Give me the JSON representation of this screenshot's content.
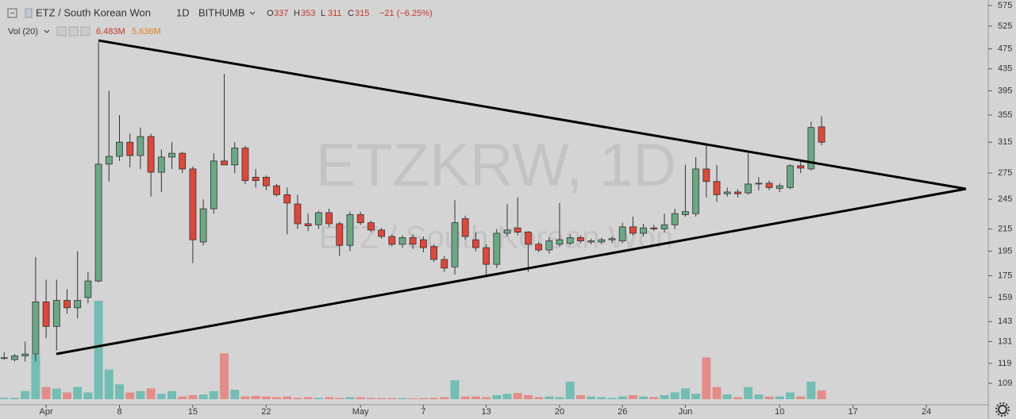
{
  "header": {
    "symbol": "ETZ / South Korean Won",
    "interval": "1D",
    "exchange": "BITHUMB",
    "ohlc_labels": [
      "O",
      "H",
      "L",
      "C"
    ],
    "change": "−21 (−6.25%)",
    "volume_indicator": "Vol (20)",
    "volume_values": [
      "6.483M",
      "5.636M"
    ],
    "watermark": "ETZKRW, 1D"
  },
  "chart_data": {
    "type": "candlestick",
    "x": [
      -4,
      -3,
      -2,
      -1,
      0,
      1,
      2,
      3,
      4,
      5,
      6,
      7,
      8,
      9,
      10,
      11,
      12,
      13,
      14,
      15,
      16,
      17,
      18,
      19,
      20,
      21,
      22,
      23,
      24,
      25,
      26,
      27,
      28,
      29,
      30,
      31,
      32,
      33,
      34,
      35,
      36,
      37,
      38,
      39,
      40,
      41,
      42,
      43,
      44,
      45,
      46,
      47,
      48,
      49,
      50,
      51,
      52,
      53,
      54,
      55,
      56,
      57,
      58,
      59,
      60,
      61,
      62,
      63,
      64,
      65,
      66,
      67,
      68,
      69,
      70,
      71,
      72,
      73,
      74
    ],
    "open": [
      122,
      121,
      123,
      124,
      156,
      140,
      157,
      152,
      159,
      171,
      286,
      296,
      315,
      297,
      323,
      276,
      295,
      300,
      280,
      203,
      235,
      290,
      285,
      307,
      270,
      270,
      260,
      250,
      240,
      220,
      219,
      231,
      220,
      200,
      229,
      221,
      214,
      208,
      201,
      207,
      205,
      199,
      188,
      182,
      225,
      205,
      198,
      184,
      211,
      216,
      212,
      201,
      196,
      201,
      202,
      207,
      203,
      203,
      205,
      204,
      217,
      211,
      216,
      215,
      219,
      229,
      230,
      280,
      265,
      251,
      253,
      252,
      262,
      263,
      257,
      258,
      284,
      280,
      337
    ],
    "high": [
      125,
      124,
      131,
      190,
      172,
      172,
      165,
      195,
      178,
      489,
      395,
      355,
      327,
      336,
      327,
      305,
      315,
      302,
      283,
      245,
      300,
      425,
      315,
      310,
      280,
      272,
      262,
      258,
      250,
      230,
      233,
      235,
      222,
      232,
      232,
      223,
      216,
      210,
      209,
      210,
      208,
      201,
      191,
      244,
      228,
      212,
      201,
      215,
      240,
      247,
      213,
      203,
      207,
      241,
      210,
      209,
      206,
      207,
      208,
      221,
      227,
      220,
      219,
      230,
      235,
      285,
      295,
      313,
      285,
      258,
      256,
      300,
      270,
      266,
      263,
      286,
      290,
      345,
      353
    ],
    "low": [
      121,
      120,
      120,
      120,
      133,
      126,
      148,
      145,
      155,
      170,
      265,
      290,
      282,
      280,
      248,
      253,
      280,
      275,
      185,
      200,
      230,
      285,
      275,
      262,
      258,
      255,
      248,
      210,
      215,
      213,
      215,
      217,
      191,
      195,
      219,
      212,
      206,
      199,
      198,
      197,
      194,
      186,
      178,
      176,
      205,
      195,
      174,
      181,
      208,
      209,
      178,
      194,
      193,
      199,
      200,
      202,
      201,
      201,
      202,
      202,
      209,
      208,
      213,
      212,
      215,
      227,
      227,
      247,
      242,
      248,
      247,
      250,
      255,
      255,
      253,
      256,
      275,
      278,
      311
    ],
    "close": [
      122,
      123,
      124,
      156,
      140,
      157,
      152,
      157,
      171,
      286,
      296,
      315,
      297,
      323,
      276,
      295,
      300,
      280,
      205,
      235,
      290,
      285,
      307,
      266,
      266,
      260,
      250,
      241,
      220,
      218,
      231,
      220,
      200,
      229,
      221,
      214,
      208,
      201,
      207,
      201,
      198,
      188,
      181,
      221,
      208,
      198,
      184,
      211,
      214,
      212,
      201,
      196,
      204,
      205,
      207,
      204,
      204,
      205,
      206,
      217,
      211,
      216,
      215,
      219,
      230,
      232,
      280,
      265,
      250,
      253,
      251,
      262,
      263,
      258,
      260,
      284,
      281,
      336,
      315
    ],
    "volume": [
      1,
      1,
      6,
      33,
      9,
      8,
      5,
      9,
      5,
      73,
      22,
      11,
      5,
      6,
      8,
      4,
      6,
      2,
      3,
      3.5,
      6,
      34,
      7,
      2,
      2.5,
      2,
      1.5,
      2,
      1,
      1.5,
      1,
      1.5,
      1,
      1.5,
      1.5,
      1,
      0.8,
      0.8,
      0.8,
      0.6,
      0.8,
      1,
      1.5,
      14,
      2,
      2,
      1.5,
      3,
      4,
      4.5,
      3,
      1.5,
      2,
      1.5,
      13,
      3,
      2,
      1.5,
      1,
      2,
      3,
      2,
      1.5,
      3,
      5,
      8,
      4,
      31,
      9,
      3.5,
      1.5,
      9,
      3.5,
      2,
      2,
      5,
      2,
      13,
      6.483
    ],
    "xlim": [
      -4.4,
      89.9
    ],
    "xticks": [
      {
        "value": 0,
        "label": "Apr"
      },
      {
        "value": 7,
        "label": "8"
      },
      {
        "value": 14,
        "label": "15"
      },
      {
        "value": 21,
        "label": "22"
      },
      {
        "value": 30,
        "label": "May"
      },
      {
        "value": 36,
        "label": "7"
      },
      {
        "value": 42,
        "label": "13"
      },
      {
        "value": 49,
        "label": "20"
      },
      {
        "value": 55,
        "label": "26"
      },
      {
        "value": 61,
        "label": "Jun"
      },
      {
        "value": 70,
        "label": "10"
      },
      {
        "value": 77,
        "label": "17"
      },
      {
        "value": 84,
        "label": "24"
      }
    ],
    "ylim": [
      99.2,
      589
    ],
    "yticks": [
      575,
      525,
      475,
      435,
      395,
      355,
      315,
      275,
      245,
      215,
      195,
      175,
      159,
      143,
      131,
      119,
      109
    ],
    "log_scale": true,
    "grid": false,
    "up_color": "#6aa884",
    "down_color": "#e0463a",
    "volume_up_color": "#72bdb4",
    "volume_down_color": "#e58c88"
  }
}
